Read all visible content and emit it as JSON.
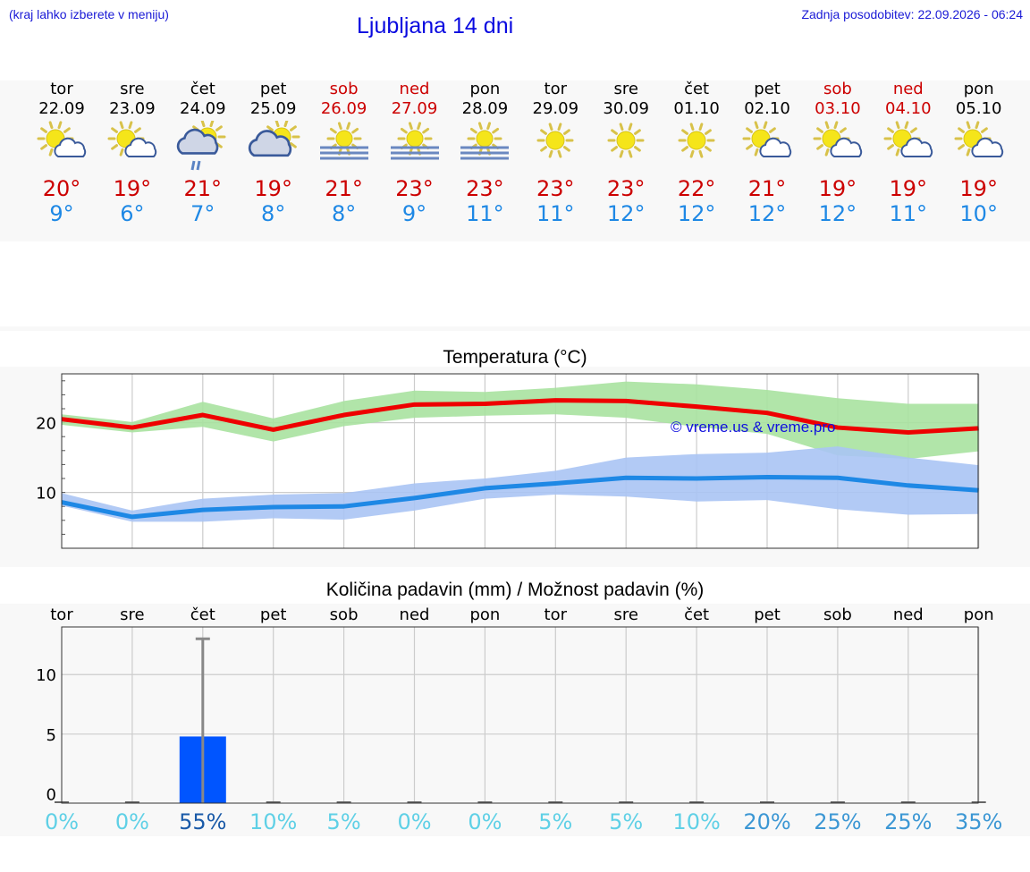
{
  "header": {
    "hint": "(kraj lahko izberete v meniju)",
    "title": "Ljubljana 14 dni",
    "updated": "Zadnja posodobitev: 22.09.2026 - 06:24"
  },
  "colors": {
    "max_line": "#ee0000",
    "max_band": "#a8e2a0",
    "min_line": "#1e88e5",
    "min_band": "#aac4f4",
    "bar": "#0055ff",
    "errbar": "#888888"
  },
  "days": [
    {
      "name": "tor",
      "date": "22.09",
      "weekend": false,
      "icon": "sun-cloud-icon",
      "tmax": "20°",
      "tmin": "9°"
    },
    {
      "name": "sre",
      "date": "23.09",
      "weekend": false,
      "icon": "sun-cloud-icon",
      "tmax": "19°",
      "tmin": "6°"
    },
    {
      "name": "čet",
      "date": "24.09",
      "weekend": false,
      "icon": "sun-cloud-rain-icon",
      "tmax": "21°",
      "tmin": "7°"
    },
    {
      "name": "pet",
      "date": "25.09",
      "weekend": false,
      "icon": "cloud-sun-icon",
      "tmax": "19°",
      "tmin": "8°"
    },
    {
      "name": "sob",
      "date": "26.09",
      "weekend": true,
      "icon": "sun-fog-icon",
      "tmax": "21°",
      "tmin": "8°"
    },
    {
      "name": "ned",
      "date": "27.09",
      "weekend": true,
      "icon": "sun-fog-icon",
      "tmax": "23°",
      "tmin": "9°"
    },
    {
      "name": "pon",
      "date": "28.09",
      "weekend": false,
      "icon": "sun-fog-icon",
      "tmax": "23°",
      "tmin": "11°"
    },
    {
      "name": "tor",
      "date": "29.09",
      "weekend": false,
      "icon": "sun-icon",
      "tmax": "23°",
      "tmin": "11°"
    },
    {
      "name": "sre",
      "date": "30.09",
      "weekend": false,
      "icon": "sun-icon",
      "tmax": "23°",
      "tmin": "12°"
    },
    {
      "name": "čet",
      "date": "01.10",
      "weekend": false,
      "icon": "sun-icon",
      "tmax": "22°",
      "tmin": "12°"
    },
    {
      "name": "pet",
      "date": "02.10",
      "weekend": false,
      "icon": "sun-cloud-icon",
      "tmax": "21°",
      "tmin": "12°"
    },
    {
      "name": "sob",
      "date": "03.10",
      "weekend": true,
      "icon": "sun-cloud-icon",
      "tmax": "19°",
      "tmin": "12°"
    },
    {
      "name": "ned",
      "date": "04.10",
      "weekend": true,
      "icon": "sun-cloud-icon",
      "tmax": "19°",
      "tmin": "11°"
    },
    {
      "name": "pon",
      "date": "05.10",
      "weekend": false,
      "icon": "sun-cloud-icon",
      "tmax": "19°",
      "tmin": "10°"
    }
  ],
  "chart_data": [
    {
      "type": "line",
      "title": "Temperatura (°C)",
      "ylim": [
        2,
        27
      ],
      "yticks": [
        10,
        20
      ],
      "grid": true,
      "watermark": "© vreme.us & vreme.pro",
      "x": [
        0,
        1,
        2,
        3,
        4,
        5,
        6,
        7,
        8,
        9,
        10,
        11,
        12,
        13
      ],
      "series": [
        {
          "key": "max",
          "values": [
            20.5,
            19.3,
            21.1,
            19.0,
            21.1,
            22.6,
            22.7,
            23.2,
            23.1,
            22.3,
            21.4,
            19.3,
            18.6,
            19.2
          ],
          "low": [
            19.7,
            18.6,
            19.4,
            17.3,
            19.5,
            20.7,
            21.0,
            21.2,
            20.7,
            19.4,
            18.4,
            15.3,
            14.8,
            15.9
          ],
          "high": [
            21.2,
            20.1,
            23.0,
            20.6,
            23.1,
            24.6,
            24.4,
            25.0,
            25.9,
            25.5,
            24.7,
            23.5,
            22.7,
            22.7
          ]
        },
        {
          "key": "min",
          "values": [
            8.6,
            6.5,
            7.5,
            7.9,
            8.0,
            9.2,
            10.6,
            11.3,
            12.1,
            12.0,
            12.2,
            12.1,
            11.0,
            10.3
          ],
          "low": [
            8.1,
            5.8,
            5.8,
            6.3,
            6.1,
            7.4,
            9.1,
            9.7,
            9.4,
            8.7,
            8.9,
            7.6,
            6.8,
            6.9
          ],
          "high": [
            9.9,
            7.4,
            9.1,
            9.7,
            9.9,
            11.3,
            12.0,
            13.1,
            15.0,
            15.5,
            15.7,
            16.6,
            15.0,
            13.9
          ]
        }
      ]
    },
    {
      "type": "bar",
      "title": "Količina padavin (mm) / Možnost padavin (%)",
      "categories": [
        "tor",
        "sre",
        "čet",
        "pet",
        "sob",
        "ned",
        "pon",
        "tor",
        "sre",
        "čet",
        "pet",
        "sob",
        "ned",
        "pon"
      ],
      "ylim": [
        -0.8,
        14
      ],
      "yticks": [
        0,
        5,
        10
      ],
      "grid": true,
      "values": [
        0,
        0,
        4.8,
        0,
        0,
        0,
        0,
        0,
        0,
        0,
        0,
        0,
        0,
        0
      ],
      "error_high": [
        0,
        0,
        13.0,
        0,
        0,
        0,
        0,
        0,
        0,
        0,
        0,
        0,
        0,
        0
      ],
      "probability": [
        "0%",
        "0%",
        "55%",
        "10%",
        "5%",
        "0%",
        "0%",
        "5%",
        "5%",
        "10%",
        "20%",
        "25%",
        "25%",
        "35%"
      ],
      "probability_values": [
        0,
        0,
        55,
        10,
        5,
        0,
        0,
        5,
        5,
        10,
        20,
        25,
        25,
        35
      ]
    }
  ]
}
